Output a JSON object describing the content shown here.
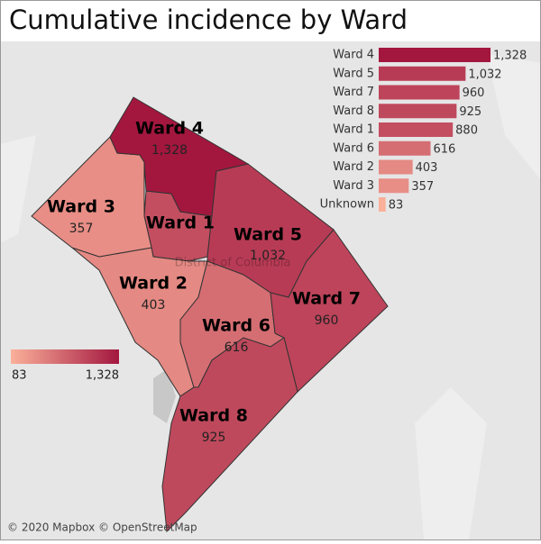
{
  "title": "Cumulative incidence by Ward",
  "chart_data": {
    "type": "bar",
    "orientation": "horizontal",
    "categories": [
      "Ward 4",
      "Ward 5",
      "Ward 7",
      "Ward 8",
      "Ward 1",
      "Ward 6",
      "Ward 2",
      "Ward 3",
      "Unknown"
    ],
    "values": [
      1328,
      1032,
      960,
      925,
      880,
      616,
      403,
      357,
      83
    ],
    "value_labels": [
      "1,328",
      "1,032",
      "960",
      "925",
      "880",
      "616",
      "403",
      "357",
      "83"
    ],
    "color_range": [
      "#fbb09a",
      "#a3173f"
    ]
  },
  "map": {
    "wards": [
      {
        "name": "Ward 1",
        "value": 880
      },
      {
        "name": "Ward 2",
        "value": 403,
        "value_label": "403"
      },
      {
        "name": "Ward 3",
        "value": 357,
        "value_label": "357"
      },
      {
        "name": "Ward 4",
        "value": 1328,
        "value_label": "1,328"
      },
      {
        "name": "Ward 5",
        "value": 1032,
        "value_label": "1,032"
      },
      {
        "name": "Ward 6",
        "value": 616,
        "value_label": "616"
      },
      {
        "name": "Ward 7",
        "value": 960,
        "value_label": "960"
      },
      {
        "name": "Ward 8",
        "value": 925,
        "value_label": "925"
      }
    ],
    "place_label": "District of Columbia",
    "legend": {
      "min": 83,
      "max": 1328,
      "min_label": "83",
      "max_label": "1,328"
    },
    "attribution": "© 2020 Mapbox © OpenStreetMap"
  }
}
